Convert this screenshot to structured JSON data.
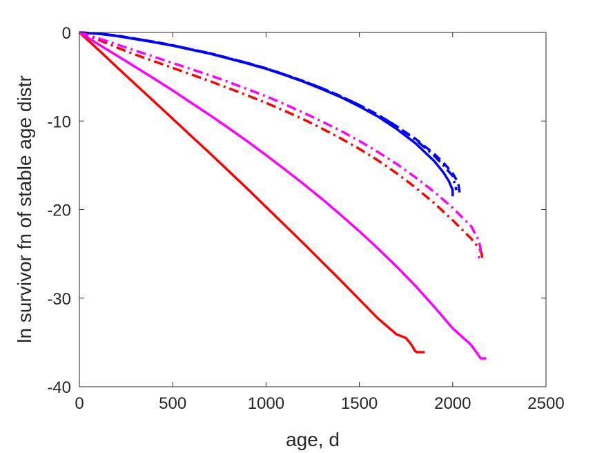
{
  "chart_data": {
    "type": "line",
    "title": "",
    "xlabel": "age, d",
    "ylabel": "ln survivor fn of stable age distr",
    "xlim": [
      0,
      2500
    ],
    "ylim": [
      -40,
      0
    ],
    "xticks": [
      0,
      500,
      1000,
      1500,
      2000,
      2500
    ],
    "yticks": [
      0,
      -10,
      -20,
      -30,
      -40
    ],
    "xtick_labels": [
      "0",
      "500",
      "1000",
      "1500",
      "2000",
      "2500"
    ],
    "ytick_labels": [
      "0",
      "-10",
      "-20",
      "-30",
      "-40"
    ],
    "grid": false,
    "legend": "none",
    "series": [
      {
        "color": "#0000ff",
        "style": "solid",
        "x": [
          0,
          100,
          200,
          300,
          400,
          500,
          600,
          700,
          800,
          900,
          1000,
          1100,
          1200,
          1300,
          1400,
          1500,
          1600,
          1700,
          1800,
          1900,
          1950,
          1980,
          2000,
          2000
        ],
        "y": [
          0,
          -0.15,
          -0.4,
          -0.75,
          -1.1,
          -1.5,
          -1.95,
          -2.4,
          -2.95,
          -3.5,
          -4.1,
          -4.8,
          -5.55,
          -6.4,
          -7.3,
          -8.35,
          -9.5,
          -10.9,
          -12.5,
          -14.5,
          -15.8,
          -16.8,
          -17.8,
          -18.5
        ]
      },
      {
        "color": "#0000ff",
        "style": "dashdot",
        "x": [
          0,
          100,
          200,
          300,
          400,
          500,
          600,
          700,
          800,
          900,
          1000,
          1100,
          1200,
          1300,
          1400,
          1500,
          1600,
          1700,
          1800,
          1900,
          1950,
          2000,
          2020
        ],
        "y": [
          0,
          -0.12,
          -0.35,
          -0.7,
          -1.05,
          -1.45,
          -1.9,
          -2.35,
          -2.9,
          -3.45,
          -4.05,
          -4.75,
          -5.5,
          -6.3,
          -7.2,
          -8.2,
          -9.3,
          -10.6,
          -12.1,
          -13.9,
          -15.0,
          -16.2,
          -17.8
        ]
      },
      {
        "color": "#0000ff",
        "style": "dashed",
        "x": [
          0,
          100,
          200,
          300,
          400,
          500,
          600,
          700,
          800,
          900,
          1000,
          1100,
          1200,
          1300,
          1400,
          1500,
          1600,
          1700,
          1800,
          1900,
          1950,
          2000,
          2030,
          2040
        ],
        "y": [
          0,
          -0.12,
          -0.35,
          -0.7,
          -1.05,
          -1.45,
          -1.9,
          -2.35,
          -2.9,
          -3.45,
          -4.05,
          -4.75,
          -5.5,
          -6.3,
          -7.2,
          -8.2,
          -9.3,
          -10.6,
          -12.0,
          -13.7,
          -14.7,
          -15.9,
          -17.0,
          -18.5
        ]
      },
      {
        "color": "#ff0000",
        "style": "solid",
        "x": [
          0,
          100,
          200,
          300,
          400,
          500,
          600,
          700,
          800,
          900,
          1000,
          1100,
          1200,
          1300,
          1400,
          1500,
          1600,
          1700,
          1750,
          1780,
          1800,
          1810,
          1850
        ],
        "y": [
          0,
          -1.9,
          -3.9,
          -5.85,
          -7.8,
          -9.75,
          -11.7,
          -13.65,
          -15.65,
          -17.65,
          -19.7,
          -21.75,
          -23.8,
          -25.9,
          -28.0,
          -30.15,
          -32.3,
          -34.1,
          -34.5,
          -35.3,
          -36.0,
          -36.1,
          -36.1
        ]
      },
      {
        "color": "#ff00ff",
        "style": "solid",
        "x": [
          0,
          100,
          200,
          300,
          400,
          500,
          600,
          700,
          800,
          900,
          1000,
          1100,
          1200,
          1300,
          1400,
          1500,
          1600,
          1700,
          1800,
          1900,
          2000,
          2100,
          2130,
          2150,
          2180
        ],
        "y": [
          0,
          -1.3,
          -2.6,
          -3.9,
          -5.2,
          -6.55,
          -7.95,
          -9.35,
          -10.8,
          -12.3,
          -13.85,
          -15.45,
          -17.1,
          -18.8,
          -20.6,
          -22.45,
          -24.4,
          -26.45,
          -28.6,
          -30.95,
          -33.4,
          -35.3,
          -36.2,
          -36.8,
          -36.8
        ]
      },
      {
        "color": "#ff0000",
        "style": "dashdot",
        "x": [
          0,
          100,
          200,
          300,
          400,
          500,
          600,
          700,
          800,
          900,
          1000,
          1100,
          1200,
          1300,
          1400,
          1500,
          1600,
          1700,
          1800,
          1900,
          2000,
          2100,
          2150,
          2160
        ],
        "y": [
          0,
          -0.8,
          -1.7,
          -2.5,
          -3.25,
          -4.0,
          -4.75,
          -5.5,
          -6.3,
          -7.1,
          -7.95,
          -8.85,
          -9.8,
          -10.85,
          -11.95,
          -13.15,
          -14.45,
          -15.9,
          -17.5,
          -19.25,
          -21.2,
          -23.3,
          -24.6,
          -25.5
        ]
      },
      {
        "color": "#ff00ff",
        "style": "dashdot",
        "x": [
          0,
          100,
          200,
          300,
          400,
          500,
          600,
          700,
          800,
          900,
          1000,
          1100,
          1200,
          1300,
          1400,
          1500,
          1600,
          1700,
          1800,
          1900,
          2000,
          2100,
          2140,
          2150,
          2140
        ],
        "y": [
          0,
          -0.65,
          -1.35,
          -2.05,
          -2.75,
          -3.45,
          -4.15,
          -4.85,
          -5.6,
          -6.4,
          -7.2,
          -8.1,
          -9.05,
          -10.05,
          -11.1,
          -12.25,
          -13.5,
          -14.85,
          -16.35,
          -18.0,
          -19.8,
          -21.9,
          -23.5,
          -24.5,
          -25.5
        ]
      }
    ]
  }
}
